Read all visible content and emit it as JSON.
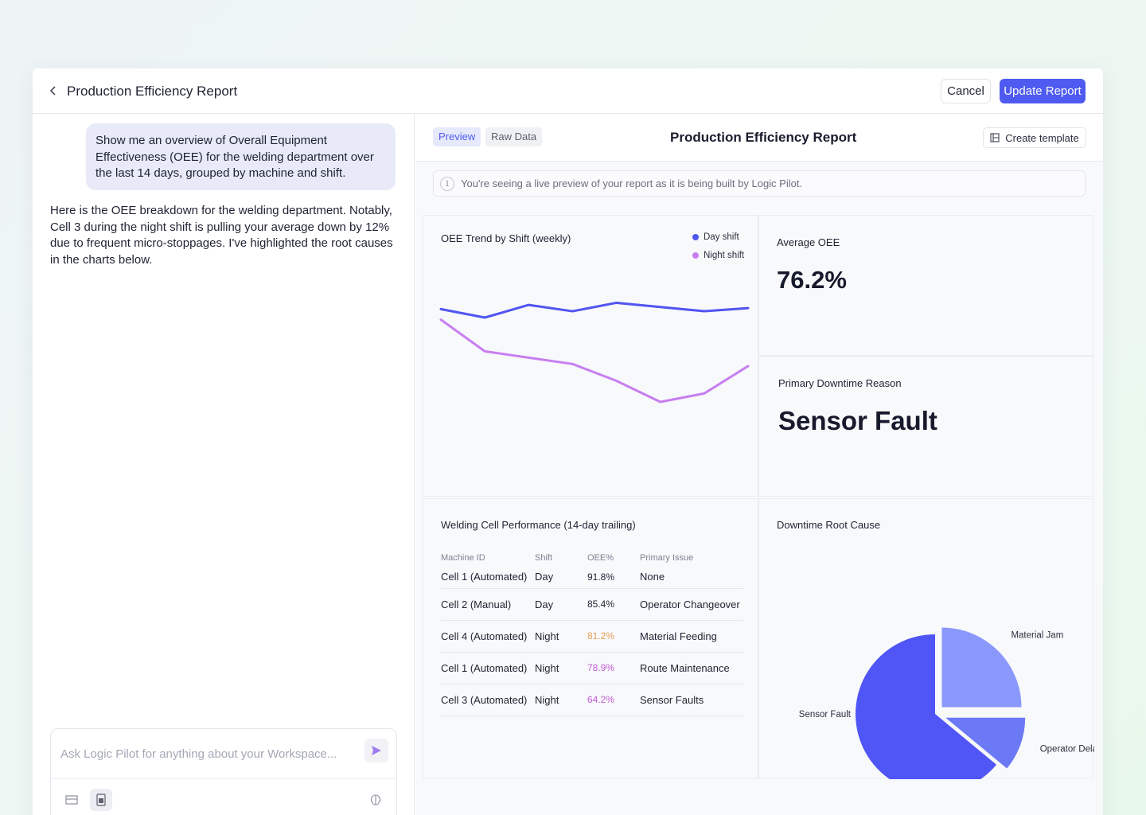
{
  "topbar": {
    "title": "Production Efficiency Report",
    "cancel_label": "Cancel",
    "update_label": "Update Report"
  },
  "chat": {
    "user_message": "Show me an overview of Overall Equipment Effectiveness (OEE) for the welding department over the last 14 days, grouped by machine and shift.",
    "assistant_message": "Here is the OEE breakdown for the welding department. Notably, Cell 3 during the night shift is pulling your average down by 12% due to frequent micro-stoppages. I've highlighted the root causes in the charts below.",
    "composer_placeholder": "Ask Logic Pilot for anything about your Workspace..."
  },
  "report": {
    "tab_preview": "Preview",
    "tab_raw": "Raw Data",
    "title": "Production Efficiency Report",
    "template_label": "Create template",
    "info_text": "You're seeing a live preview of your report as it is being built by Logic Pilot."
  },
  "kpis": {
    "avg_label": "Average OEE",
    "avg_value": "76.2%",
    "downtime_label": "Primary Downtime Reason",
    "downtime_value": "Sensor Fault"
  },
  "table": {
    "title": "Welding Cell Performance (14-day trailing)",
    "headers": [
      "Machine ID",
      "Shift",
      "OEE%",
      "Primary Issue"
    ],
    "rows": [
      {
        "machine": "Cell 1 (Automated)",
        "shift": "Day",
        "oee": "91.8%",
        "issue": "None",
        "color": "#1f2233"
      },
      {
        "machine": "Cell 2 (Manual)",
        "shift": "Day",
        "oee": "85.4%",
        "issue": "Operator Changeover",
        "color": "#1f2233"
      },
      {
        "machine": "Cell 4 (Automated)",
        "shift": "Night",
        "oee": "81.2%",
        "issue": "Material Feeding",
        "color": "#e6a15a"
      },
      {
        "machine": "Cell 1 (Automated)",
        "shift": "Night",
        "oee": "78.9%",
        "issue": "Route Maintenance",
        "color": "#c25ad6"
      },
      {
        "machine": "Cell 3 (Automated)",
        "shift": "Night",
        "oee": "64.2%",
        "issue": "Sensor Faults",
        "color": "#c25ad6"
      }
    ]
  },
  "chart_data": [
    {
      "type": "line",
      "title": "OEE Trend by Shift (weekly)",
      "x": [
        1,
        2,
        3,
        4,
        5,
        6,
        7,
        8
      ],
      "ylim": [
        0,
        100
      ],
      "series": [
        {
          "name": "Day shift",
          "color": "#5055f0",
          "x": [
            1,
            2,
            3,
            4,
            5,
            6,
            7,
            8
          ],
          "values": [
            84,
            80,
            86,
            83,
            87,
            85,
            83,
            84.5
          ]
        },
        {
          "name": "Night shift",
          "color": "#c77ff0",
          "x": [
            1,
            2,
            3,
            4,
            5,
            6,
            7,
            8
          ],
          "values": [
            79,
            64,
            61,
            58,
            50,
            40,
            44,
            57
          ]
        }
      ]
    },
    {
      "type": "pie",
      "title": "Downtime Root Cause",
      "slices": [
        {
          "label": "Sensor Fault",
          "value": 64,
          "color": "#5055f5"
        },
        {
          "label": "Material Jam",
          "value": 25,
          "color": "#8a98fb"
        },
        {
          "label": "Operator Delay",
          "value": 11,
          "color": "#6b79f5"
        }
      ]
    }
  ]
}
